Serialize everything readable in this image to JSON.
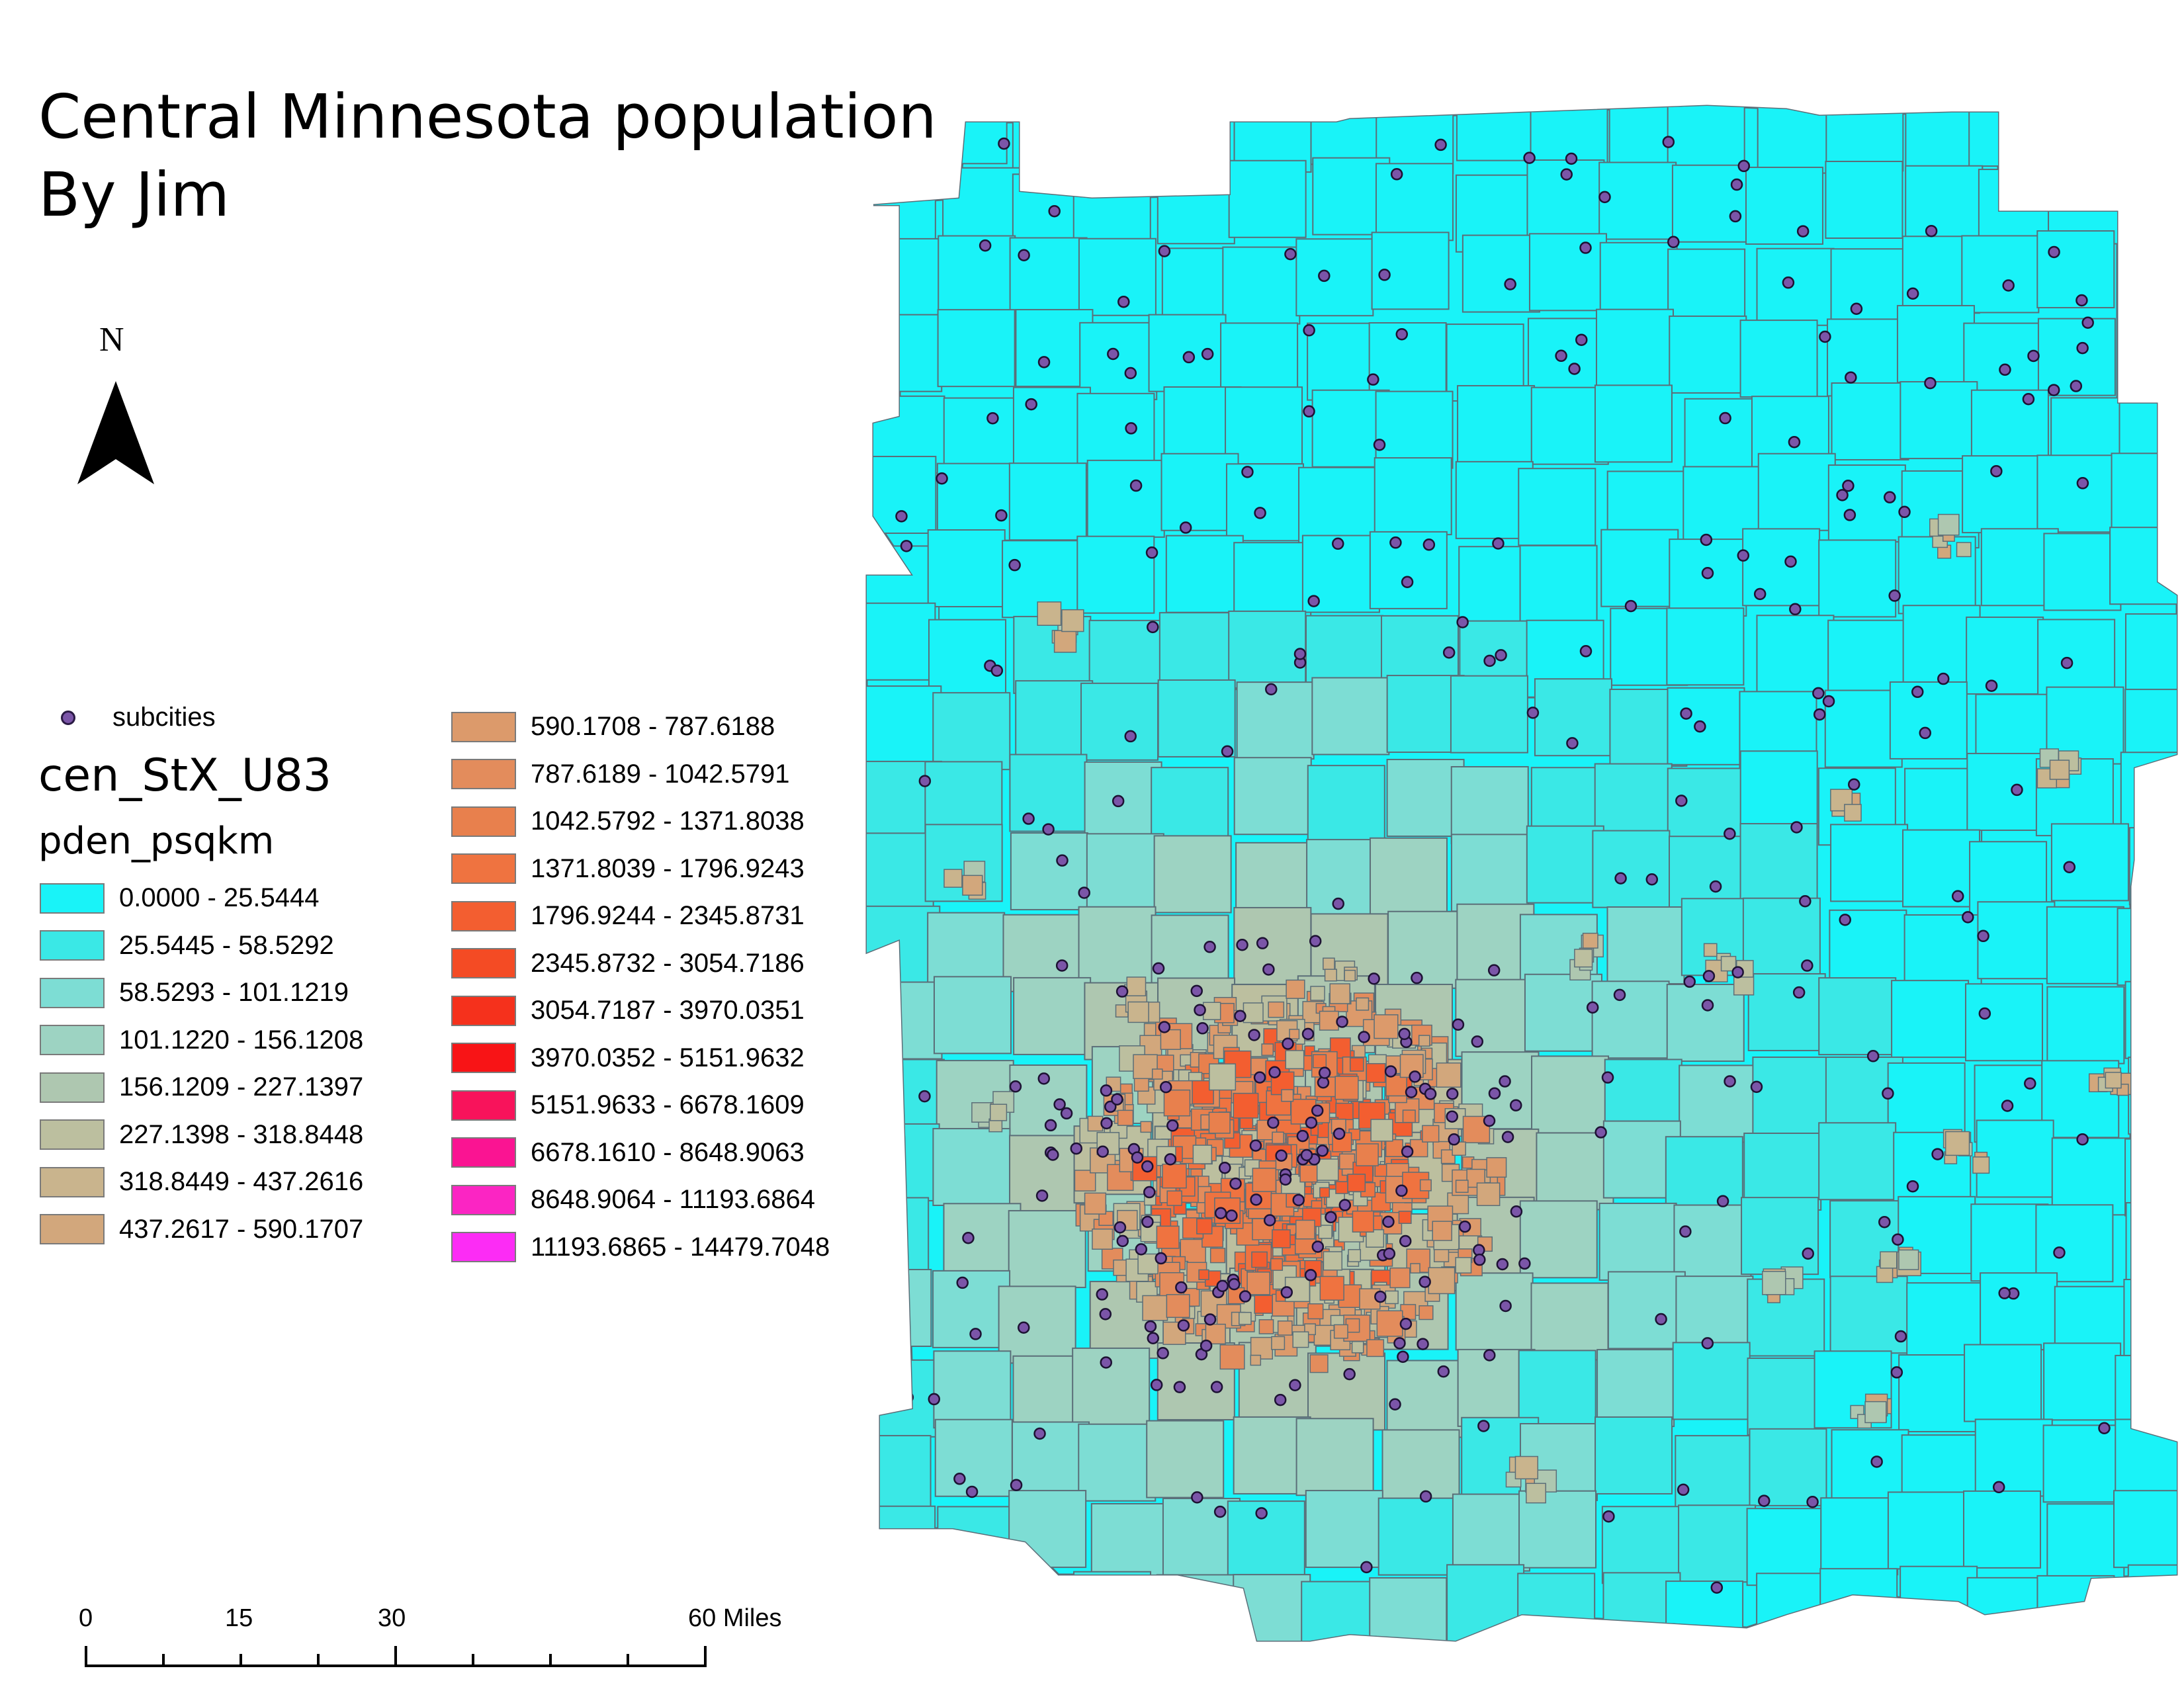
{
  "title": {
    "line1": "Central Minnesota population",
    "line2": "By Jim"
  },
  "north_arrow": {
    "label": "N"
  },
  "legend": {
    "points_layer": {
      "label": "subcities",
      "color": "#7b55a8"
    },
    "layer_name": "cen_StX_U83",
    "field_name": "pden_psqkm",
    "classes": [
      {
        "label": "0.0000 - 25.5444",
        "color": "#19f3f8"
      },
      {
        "label": "25.5445 - 58.5292",
        "color": "#3ae8e6"
      },
      {
        "label": "58.5293 - 101.1219",
        "color": "#7dddd4"
      },
      {
        "label": "101.1220 - 156.1208",
        "color": "#9dd3c2"
      },
      {
        "label": "156.1209 - 227.1397",
        "color": "#aec7b0"
      },
      {
        "label": "227.1398 - 318.8448",
        "color": "#bcbf9f"
      },
      {
        "label": "318.8449 - 437.2616",
        "color": "#c9b48d"
      },
      {
        "label": "437.2617 - 590.1707",
        "color": "#d2a77c"
      },
      {
        "label": "590.1708 - 787.6188",
        "color": "#dc9a6b"
      },
      {
        "label": "787.6189 - 1042.5791",
        "color": "#e38c5c"
      },
      {
        "label": "1042.5792 - 1371.8038",
        "color": "#e8804d"
      },
      {
        "label": "1371.8039 - 1796.9243",
        "color": "#ef7340"
      },
      {
        "label": "1796.9244 - 2345.8731",
        "color": "#f35e30"
      },
      {
        "label": "2345.8732 - 3054.7186",
        "color": "#f44b24"
      },
      {
        "label": "3054.7187 - 3970.0351",
        "color": "#f5311c"
      },
      {
        "label": "3970.0352 - 5151.9632",
        "color": "#f81416"
      },
      {
        "label": "5151.9633 - 6678.1609",
        "color": "#f8135b"
      },
      {
        "label": "6678.1610 - 8648.9063",
        "color": "#fa1492"
      },
      {
        "label": "8648.9064 - 11193.6864",
        "color": "#fb25c3"
      },
      {
        "label": "11193.6865 - 14479.7048",
        "color": "#fc2cf5"
      }
    ]
  },
  "scale_bar": {
    "ticks": [
      "0",
      "15",
      "30",
      "60 Miles"
    ],
    "tick_values_miles": [
      0,
      15,
      30,
      60
    ]
  },
  "map": {
    "boundary_color": "#5b6e78",
    "dot_color": "#7b55a8"
  }
}
